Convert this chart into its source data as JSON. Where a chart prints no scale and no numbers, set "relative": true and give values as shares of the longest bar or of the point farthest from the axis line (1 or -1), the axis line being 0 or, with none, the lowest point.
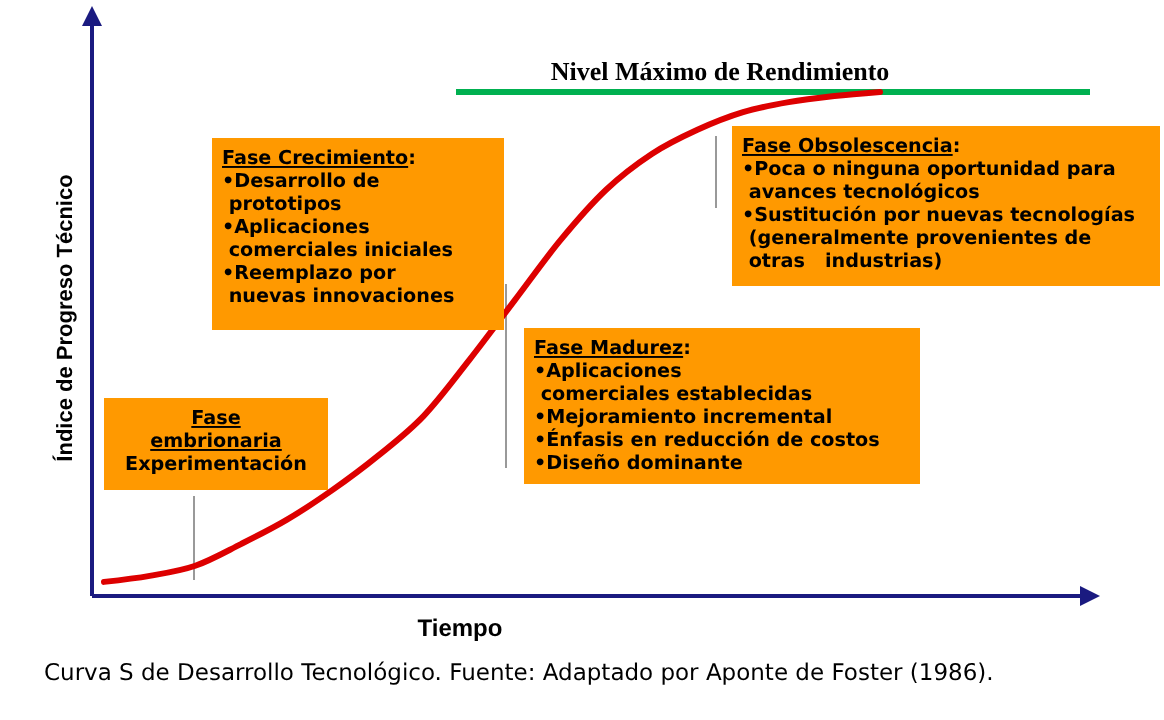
{
  "chart_data": {
    "type": "line",
    "relative": true,
    "categories": [
      null,
      null,
      null,
      null,
      null,
      null,
      null,
      null,
      null,
      null,
      null,
      null,
      null,
      null,
      null,
      null,
      null,
      null
    ],
    "series": [
      {
        "color": "#dd0000",
        "values": [
          0.028,
          0.04,
          0.06,
          0.103,
          0.151,
          0.21,
          0.278,
          0.357,
          0.468,
          0.587,
          0.706,
          0.806,
          0.877,
          0.925,
          0.96,
          0.98,
          0.992,
          1
        ]
      }
    ],
    "xlabel": "Tiempo",
    "ylabel": "Índice de Progreso Técnico",
    "ref_lines": [
      {
        "axis": "y",
        "value": 1,
        "label": "Nivel Máximo de Rendimiento",
        "color": "#00b050"
      }
    ],
    "annotations": [
      "Fase\nembrionaria\nExperimentación",
      "Fase Crecimiento:\n•Desarrollo de\n prototipos\n•Aplicaciones\n comerciales iniciales\n•Reemplazo por\n nuevas innovaciones",
      "Fase Madurez:\n•Aplicaciones\n comerciales establecidas\n•Mejoramiento incremental\n•Énfasis en reducción de costos\n•Diseño dominante",
      "Fase Obsolescencia:\n•Poca o ninguna oportunidad para\n avances tecnológicos\n•Sustitución por nuevas tecnologías\n (generalmente provenientes de\n otras   industrias)",
      "Curva S de Desarrollo Tecnológico. Fuente: Adaptado por Aponte de Foster (1986)."
    ]
  }
}
